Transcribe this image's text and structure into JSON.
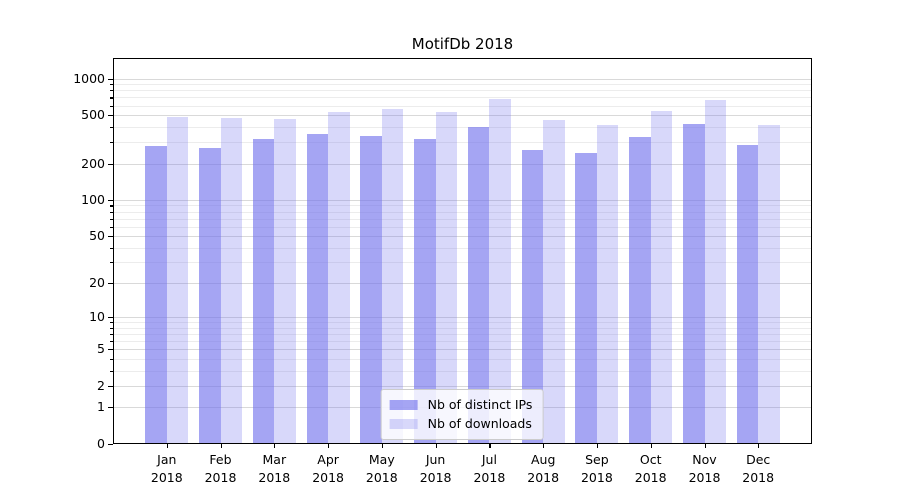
{
  "chart_data": {
    "type": "bar",
    "title": "MotifDb 2018",
    "categories": [
      "Jan",
      "Feb",
      "Mar",
      "Apr",
      "May",
      "Jun",
      "Jul",
      "Aug",
      "Sep",
      "Oct",
      "Nov",
      "Dec"
    ],
    "year_label": "2018",
    "series": [
      {
        "name": "Nb of distinct IPs",
        "color": "rgba(110,110,235,0.62)",
        "values": [
          280,
          270,
          320,
          350,
          340,
          320,
          400,
          260,
          245,
          330,
          420,
          285
        ]
      },
      {
        "name": "Nb of downloads",
        "color": "rgba(110,110,235,0.27)",
        "values": [
          480,
          470,
          465,
          535,
          560,
          535,
          675,
          455,
          415,
          540,
          665,
          415
        ]
      }
    ],
    "yscale": "log1p",
    "ylim": [
      0,
      1475
    ],
    "yticks_major": [
      0,
      1,
      2,
      5,
      10,
      20,
      50,
      100,
      200,
      500,
      1000
    ],
    "yticks_minor": [
      3,
      4,
      6,
      7,
      8,
      9,
      30,
      40,
      60,
      70,
      80,
      90,
      300,
      400,
      600,
      700,
      800,
      900
    ],
    "grid": "horizontal",
    "legend_position": "lower center",
    "colors": {
      "major_grid": "#d9d9d9",
      "minor_grid": "#ececec",
      "spine": "#000000",
      "background": "#ffffff"
    }
  }
}
